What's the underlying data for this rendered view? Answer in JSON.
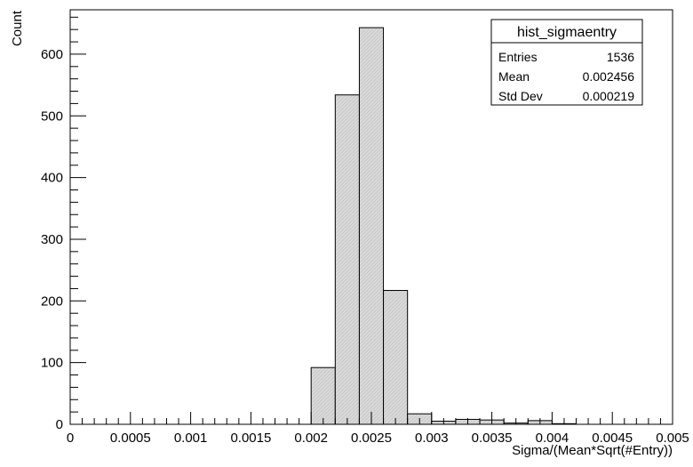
{
  "chart_data": {
    "type": "bar",
    "title": "",
    "xlabel": "Sigma/(Mean*Sqrt(#Entry))",
    "ylabel": "Count",
    "xlim": [
      0,
      0.005
    ],
    "ylim": [
      0,
      672
    ],
    "x_major_ticks": [
      0,
      0.0005,
      0.001,
      0.0015,
      0.002,
      0.0025,
      0.003,
      0.0035,
      0.004,
      0.0045,
      0.005
    ],
    "x_tick_labels": [
      "0",
      "0.0005",
      "0.001",
      "0.0015",
      "0.002",
      "0.0025",
      "0.003",
      "0.0035",
      "0.004",
      "0.0045",
      "0.005"
    ],
    "y_major_ticks": [
      0,
      100,
      200,
      300,
      400,
      500,
      600
    ],
    "y_tick_labels": [
      "0",
      "100",
      "200",
      "300",
      "400",
      "500",
      "600"
    ],
    "bin_edges": [
      0,
      0.0002,
      0.0004,
      0.0006,
      0.0008,
      0.001,
      0.0012,
      0.0014,
      0.0016,
      0.0018,
      0.002,
      0.0022,
      0.0024,
      0.0026,
      0.0028,
      0.003,
      0.0032,
      0.0034,
      0.0036,
      0.0038,
      0.004,
      0.0042,
      0.0044,
      0.0046,
      0.0048,
      0.005
    ],
    "values": [
      0,
      0,
      0,
      0,
      0,
      0,
      0,
      0,
      0,
      0,
      92,
      534,
      643,
      217,
      17,
      5,
      8,
      7,
      2,
      6,
      1,
      0,
      0,
      0,
      0
    ],
    "grid": false,
    "fill_color": "#d9d9d9",
    "line_color": "#000000",
    "stats_box": {
      "name": "hist_sigmaentry",
      "rows": [
        {
          "label": "Entries",
          "value": "1536"
        },
        {
          "label": "Mean",
          "value": "0.002456"
        },
        {
          "label": "Std Dev",
          "value": "0.000219"
        }
      ]
    }
  }
}
